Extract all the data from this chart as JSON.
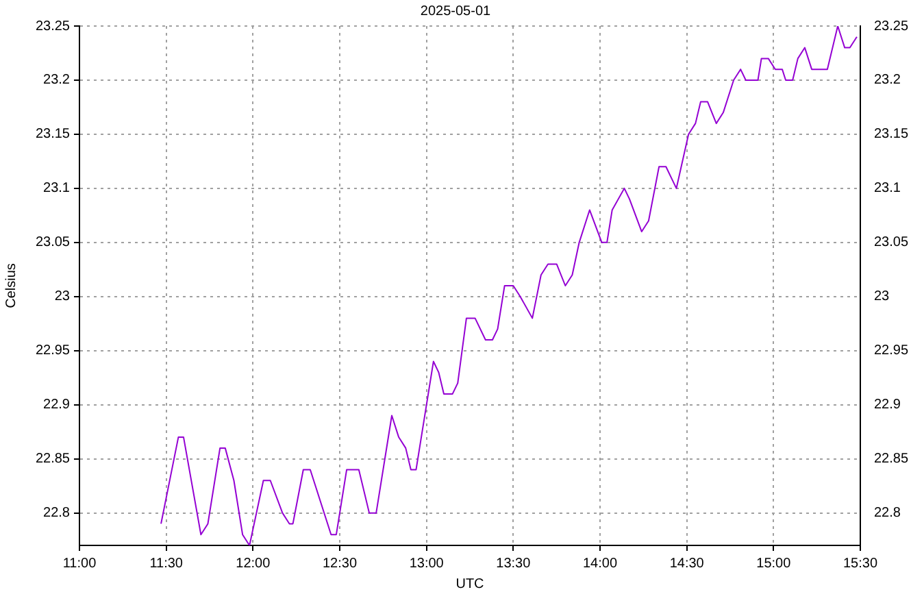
{
  "chart_data": {
    "type": "line",
    "title": "2025-05-01",
    "xlabel": "UTC",
    "ylabel": "Celsius",
    "x": [
      11.47,
      11.57,
      11.6,
      11.7,
      11.74,
      11.81,
      11.84,
      11.89,
      11.94,
      11.98,
      12.06,
      12.1,
      12.17,
      12.21,
      12.23,
      12.29,
      12.33,
      12.45,
      12.48,
      12.54,
      12.61,
      12.67,
      12.71,
      12.8,
      12.84,
      12.88,
      12.91,
      12.94,
      13.04,
      13.07,
      13.1,
      13.15,
      13.18,
      13.23,
      13.28,
      13.34,
      13.38,
      13.41,
      13.45,
      13.5,
      13.54,
      13.61,
      13.66,
      13.7,
      13.75,
      13.8,
      13.84,
      13.88,
      13.94,
      14.01,
      14.04,
      14.07,
      14.14,
      14.17,
      14.24,
      14.28,
      14.34,
      14.38,
      14.44,
      14.51,
      14.55,
      14.58,
      14.62,
      14.67,
      14.71,
      14.77,
      14.81,
      14.84,
      14.91,
      14.93,
      14.97,
      15.01,
      15.05,
      15.07,
      15.11,
      15.14,
      15.18,
      15.22,
      15.31,
      15.37,
      15.41,
      15.44,
      15.48
    ],
    "series": [
      {
        "color": "#9400d3",
        "values": [
          22.79,
          22.87,
          22.87,
          22.78,
          22.79,
          22.86,
          22.86,
          22.83,
          22.78,
          22.77,
          22.83,
          22.83,
          22.8,
          22.79,
          22.79,
          22.84,
          22.84,
          22.78,
          22.78,
          22.84,
          22.84,
          22.8,
          22.8,
          22.89,
          22.87,
          22.86,
          22.84,
          22.84,
          22.94,
          22.93,
          22.91,
          22.91,
          22.92,
          22.98,
          22.98,
          22.96,
          22.96,
          22.97,
          23.01,
          23.01,
          23.0,
          22.98,
          23.02,
          23.03,
          23.03,
          23.01,
          23.02,
          23.05,
          23.08,
          23.05,
          23.05,
          23.08,
          23.1,
          23.09,
          23.06,
          23.07,
          23.12,
          23.12,
          23.1,
          23.15,
          23.16,
          23.18,
          23.18,
          23.16,
          23.17,
          23.2,
          23.21,
          23.2,
          23.2,
          23.22,
          23.22,
          23.21,
          23.21,
          23.2,
          23.2,
          23.22,
          23.23,
          23.21,
          23.21,
          23.25,
          23.23,
          23.23,
          23.24
        ]
      }
    ],
    "xlim": [
      11,
      15.5
    ],
    "xticks": [
      {
        "value": 11,
        "label": "11:00"
      },
      {
        "value": 11.5,
        "label": "11:30"
      },
      {
        "value": 12,
        "label": "12:00"
      },
      {
        "value": 12.5,
        "label": "12:30"
      },
      {
        "value": 13,
        "label": "13:00"
      },
      {
        "value": 13.5,
        "label": "13:30"
      },
      {
        "value": 14,
        "label": "14:00"
      },
      {
        "value": 14.5,
        "label": "14:30"
      },
      {
        "value": 15,
        "label": "15:00"
      },
      {
        "value": 15.5,
        "label": "15:30"
      }
    ],
    "ylim": [
      22.77,
      23.25
    ],
    "yticks": [
      22.8,
      22.85,
      22.9,
      22.95,
      23,
      23.05,
      23.1,
      23.15,
      23.2,
      23.25
    ],
    "y2lim": [
      22.77,
      23.25
    ],
    "y2ticks": [
      22.8,
      22.85,
      22.9,
      22.95,
      23,
      23.05,
      23.1,
      23.15,
      23.2,
      23.25
    ],
    "grid": true,
    "legend": false,
    "marker": "none",
    "line_style": "solid"
  }
}
